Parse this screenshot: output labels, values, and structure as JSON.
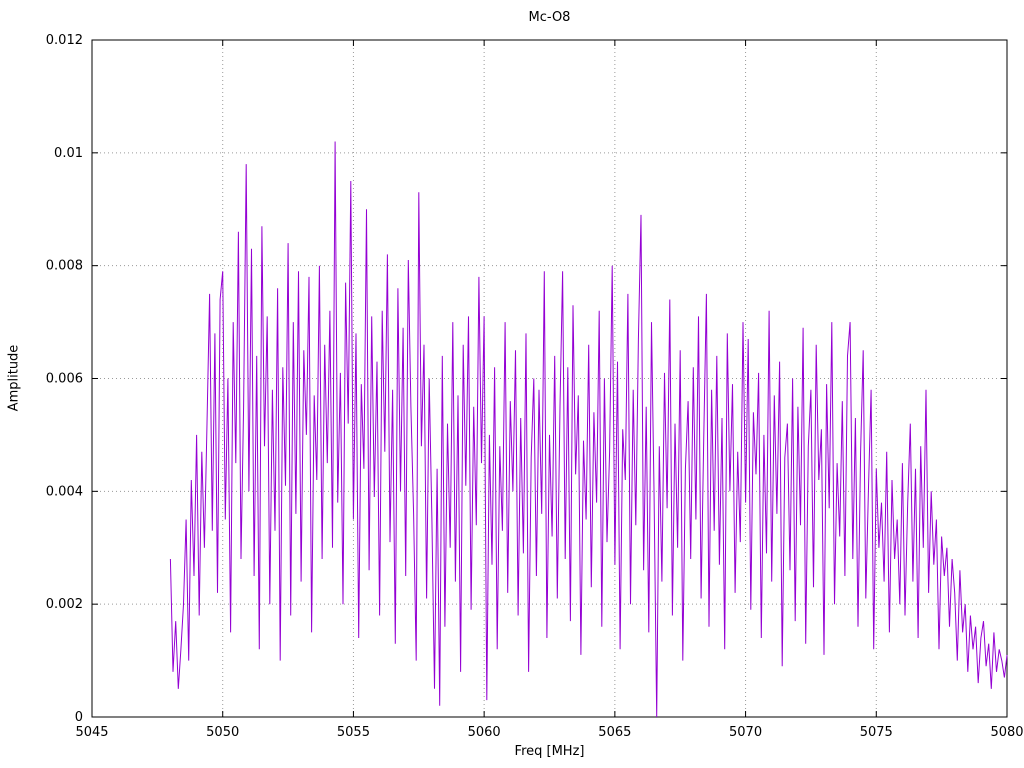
{
  "chart_data": {
    "type": "line",
    "title": "Mc-O8",
    "xlabel": "Freq [MHz]",
    "ylabel": "Amplitude",
    "xlim": [
      5045,
      5080
    ],
    "ylim": [
      0,
      0.012
    ],
    "grid": true,
    "legend": "none",
    "line_color": "#9400d3",
    "xticks": [
      5045,
      5050,
      5055,
      5060,
      5065,
      5070,
      5075,
      5080
    ],
    "xtick_labels": [
      "5045",
      "5050",
      "5055",
      "5060",
      "5065",
      "5070",
      "5075",
      "5080"
    ],
    "yticks": [
      0,
      0.002,
      0.004,
      0.006,
      0.008,
      0.01,
      0.012
    ],
    "ytick_labels": [
      "0",
      "0.002",
      "0.004",
      "0.006",
      "0.008",
      "0.01",
      "0.012"
    ],
    "x_start": 5048.0,
    "x_step": 0.1,
    "y_scale": 0.0001,
    "values": [
      28,
      8,
      17,
      5,
      12,
      20,
      35,
      10,
      42,
      25,
      50,
      18,
      47,
      30,
      52,
      75,
      33,
      68,
      22,
      74,
      79,
      35,
      60,
      15,
      70,
      45,
      86,
      28,
      55,
      98,
      40,
      83,
      25,
      64,
      12,
      87,
      48,
      71,
      20,
      58,
      33,
      76,
      10,
      62,
      41,
      84,
      18,
      70,
      36,
      79,
      24,
      65,
      50,
      78,
      15,
      57,
      42,
      80,
      28,
      66,
      45,
      72,
      30,
      102,
      38,
      61,
      20,
      77,
      52,
      95,
      35,
      68,
      14,
      59,
      44,
      90,
      26,
      71,
      39,
      63,
      18,
      72,
      47,
      82,
      31,
      58,
      13,
      76,
      40,
      69,
      25,
      81,
      55,
      36,
      10,
      93,
      48,
      66,
      21,
      60,
      35,
      5,
      44,
      2,
      64,
      16,
      52,
      30,
      70,
      24,
      57,
      8,
      66,
      41,
      71,
      19,
      55,
      34,
      78,
      45,
      71,
      3,
      50,
      27,
      62,
      12,
      48,
      33,
      70,
      22,
      56,
      40,
      65,
      18,
      53,
      29,
      68,
      8,
      46,
      60,
      25,
      58,
      36,
      79,
      14,
      50,
      32,
      64,
      21,
      55,
      79,
      28,
      62,
      17,
      73,
      43,
      57,
      11,
      49,
      35,
      66,
      23,
      54,
      38,
      72,
      16,
      60,
      31,
      47,
      80,
      27,
      63,
      12,
      51,
      42,
      75,
      20,
      58,
      34,
      67,
      89,
      26,
      55,
      15,
      70,
      39,
      0,
      48,
      24,
      61,
      37,
      74,
      18,
      52,
      30,
      65,
      10,
      44,
      56,
      28,
      62,
      35,
      71,
      21,
      49,
      75,
      16,
      58,
      33,
      64,
      27,
      53,
      12,
      68,
      40,
      59,
      22,
      47,
      31,
      70,
      38,
      67,
      19,
      54,
      43,
      61,
      14,
      50,
      29,
      72,
      24,
      57,
      36,
      63,
      9,
      46,
      52,
      26,
      60,
      17,
      55,
      34,
      69,
      13,
      48,
      58,
      23,
      66,
      42,
      51,
      11,
      59,
      37,
      70,
      20,
      45,
      32,
      56,
      25,
      64,
      70,
      28,
      53,
      16,
      47,
      65,
      21,
      40,
      58,
      12,
      44,
      30,
      38,
      24,
      47,
      15,
      42,
      28,
      35,
      20,
      45,
      18,
      38,
      52,
      24,
      44,
      14,
      48,
      30,
      58,
      22,
      40,
      27,
      35,
      12,
      32,
      25,
      30,
      16,
      28,
      22,
      10,
      26,
      15,
      20,
      8,
      18,
      12,
      16,
      6,
      14,
      17,
      9,
      13,
      5,
      15,
      8,
      12,
      10,
      7,
      11
    ]
  }
}
